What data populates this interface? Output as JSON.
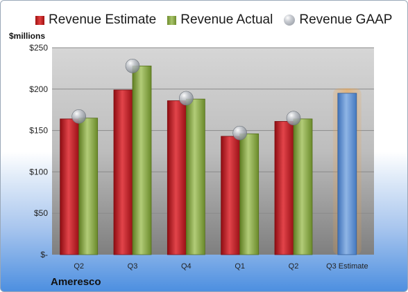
{
  "legend": {
    "estimate": "Revenue Estimate",
    "actual": "Revenue Actual",
    "gaap": "Revenue GAAP"
  },
  "units_label": "$millions",
  "company": "Ameresco",
  "colors": {
    "estimate": "#c8202a",
    "actual": "#8fac4e",
    "gaap": "#a7acb3",
    "projection": "#5b8fd0",
    "projection_glow": "#f0a040"
  },
  "chart_data": {
    "type": "bar",
    "categories": [
      "Q2",
      "Q3",
      "Q4",
      "Q1",
      "Q2",
      "Q3 Estimate"
    ],
    "series": [
      {
        "name": "Revenue Estimate",
        "values": [
          164,
          199,
          186,
          143,
          161,
          195
        ]
      },
      {
        "name": "Revenue Actual",
        "values": [
          165,
          228,
          188,
          146,
          164,
          null
        ]
      },
      {
        "name": "Revenue GAAP",
        "values": [
          167,
          228,
          189,
          147,
          165,
          null
        ]
      }
    ],
    "ylim": [
      0,
      250
    ],
    "yticks": [
      0,
      50,
      100,
      150,
      200,
      250
    ],
    "ytick_labels": [
      "$-",
      "$50",
      "$100",
      "$150",
      "$200",
      "$250"
    ],
    "grid": true,
    "legend_position": "top"
  }
}
